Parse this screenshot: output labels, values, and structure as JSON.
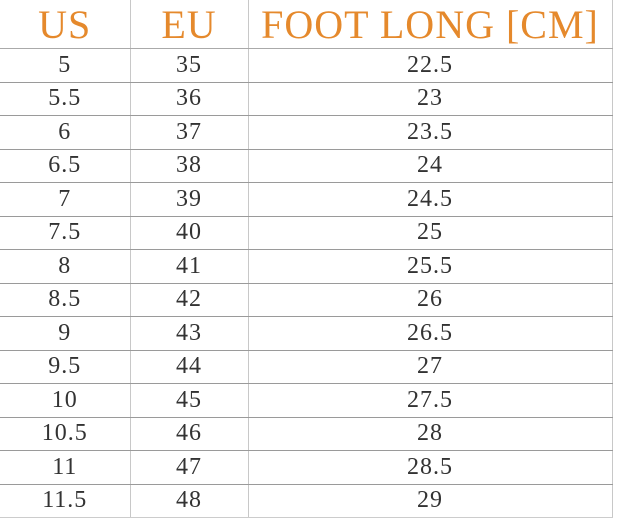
{
  "table": {
    "header": [
      "US",
      "EU",
      "FOOT LONG [CM]"
    ],
    "rows": [
      [
        "5",
        "35",
        "22.5"
      ],
      [
        "5.5",
        "36",
        "23"
      ],
      [
        "6",
        "37",
        "23.5"
      ],
      [
        "6.5",
        "38",
        "24"
      ],
      [
        "7",
        "39",
        "24.5"
      ],
      [
        "7.5",
        "40",
        "25"
      ],
      [
        "8",
        "41",
        "25.5"
      ],
      [
        "8.5",
        "42",
        "26"
      ],
      [
        "9",
        "43",
        "26.5"
      ],
      [
        "9.5",
        "44",
        "27"
      ],
      [
        "10",
        "45",
        "27.5"
      ],
      [
        "10.5",
        "46",
        "28"
      ],
      [
        "11",
        "47",
        "28.5"
      ],
      [
        "11.5",
        "48",
        "29"
      ]
    ]
  }
}
